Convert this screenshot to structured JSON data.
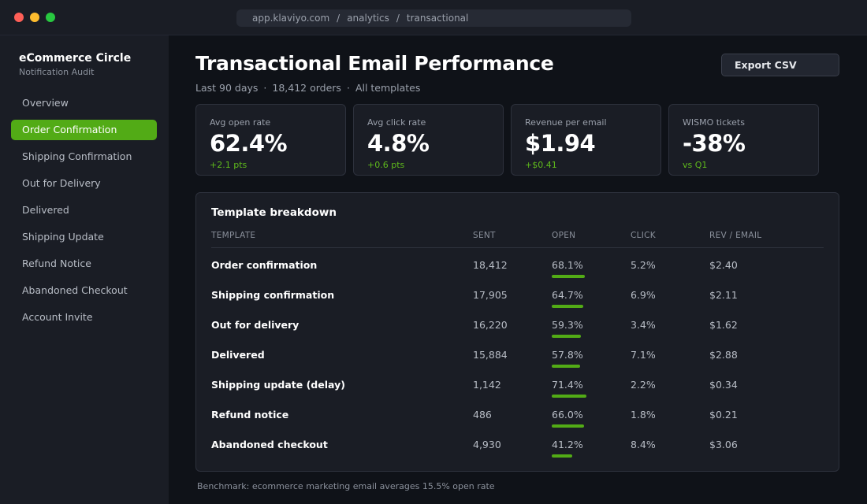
{
  "window": {
    "url_parts": [
      "app.klaviyo.com",
      "analytics",
      "transactional"
    ]
  },
  "sidebar": {
    "brand": "eCommerce Circle",
    "subtitle": "Notification Audit",
    "items": [
      {
        "label": "Overview",
        "active": false
      },
      {
        "label": "Order Confirmation",
        "active": true
      },
      {
        "label": "Shipping Confirmation",
        "active": false
      },
      {
        "label": "Out for Delivery",
        "active": false
      },
      {
        "label": "Delivered",
        "active": false
      },
      {
        "label": "Shipping Update",
        "active": false
      },
      {
        "label": "Refund Notice",
        "active": false
      },
      {
        "label": "Abandoned Checkout",
        "active": false
      },
      {
        "label": "Account Invite",
        "active": false
      }
    ]
  },
  "header": {
    "title": "Transactional Email Performance",
    "meta": [
      "Last 90 days",
      "18,412 orders",
      "All templates"
    ],
    "export_label": "Export CSV"
  },
  "kpis": [
    {
      "label": "Avg open rate",
      "value": "62.4%",
      "delta": "+2.1 pts"
    },
    {
      "label": "Avg click rate",
      "value": "4.8%",
      "delta": "+0.6 pts"
    },
    {
      "label": "Revenue per email",
      "value": "$1.94",
      "delta": "+$0.41"
    },
    {
      "label": "WISMO tickets",
      "value": "-38%",
      "delta": "vs Q1"
    }
  ],
  "table": {
    "title": "Template breakdown",
    "columns": [
      "TEMPLATE",
      "SENT",
      "OPEN",
      "CLICK",
      "REV / EMAIL"
    ],
    "rows": [
      {
        "template": "Order confirmation",
        "sent": "18,412",
        "open": "68.1%",
        "open_rate": 68.1,
        "click": "5.2%",
        "rev": "$2.40"
      },
      {
        "template": "Shipping confirmation",
        "sent": "17,905",
        "open": "64.7%",
        "open_rate": 64.7,
        "click": "6.9%",
        "rev": "$2.11"
      },
      {
        "template": "Out for delivery",
        "sent": "16,220",
        "open": "59.3%",
        "open_rate": 59.3,
        "click": "3.4%",
        "rev": "$1.62"
      },
      {
        "template": "Delivered",
        "sent": "15,884",
        "open": "57.8%",
        "open_rate": 57.8,
        "click": "7.1%",
        "rev": "$2.88"
      },
      {
        "template": "Shipping update (delay)",
        "sent": "1,142",
        "open": "71.4%",
        "open_rate": 71.4,
        "click": "2.2%",
        "rev": "$0.34"
      },
      {
        "template": "Refund notice",
        "sent": "486",
        "open": "66.0%",
        "open_rate": 66.0,
        "click": "1.8%",
        "rev": "$0.21"
      },
      {
        "template": "Abandoned checkout",
        "sent": "4,930",
        "open": "41.2%",
        "open_rate": 41.2,
        "click": "8.4%",
        "rev": "$3.06"
      }
    ]
  },
  "footnote": "Benchmark: ecommerce marketing email averages 15.5% open rate",
  "colors": {
    "accent": "#52ab16",
    "positive": "#5fba1c",
    "background": "#0f1218",
    "panel": "#1a1d25"
  }
}
